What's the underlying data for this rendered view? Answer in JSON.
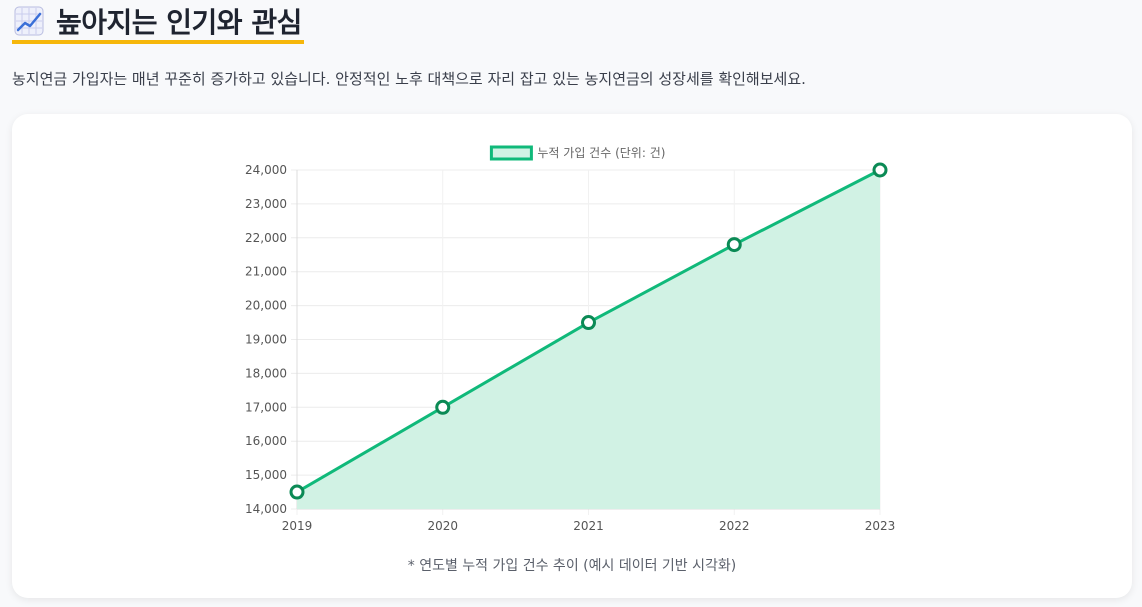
{
  "header": {
    "icon": "chart-increasing-icon",
    "title": "높아지는 인기와 관심"
  },
  "intro_text": "농지연금 가입자는 매년 꾸준히 증가하고 있습니다. 안정적인 노후 대책으로 자리 잡고 있는 농지연금의 성장세를 확인해보세요.",
  "caption": "* 연도별 누적 가입 건수 추이 (예시 데이터 기반 시각화)",
  "colors": {
    "line": "#10b97a",
    "fill": "#d1f2e4",
    "point_border": "#0b8a55",
    "accent_underline": "#f6b70b"
  },
  "chart_data": {
    "type": "area",
    "x": [
      "2019",
      "2020",
      "2021",
      "2022",
      "2023"
    ],
    "series": [
      {
        "name": "누적 가입 건수 (단위: 건)",
        "values": [
          14500,
          17000,
          19500,
          21800,
          24000
        ]
      }
    ],
    "ylim": [
      14000,
      24000
    ],
    "yticks": [
      14000,
      15000,
      16000,
      17000,
      18000,
      19000,
      20000,
      21000,
      22000,
      23000,
      24000
    ],
    "legend_position": "top",
    "grid": true
  }
}
